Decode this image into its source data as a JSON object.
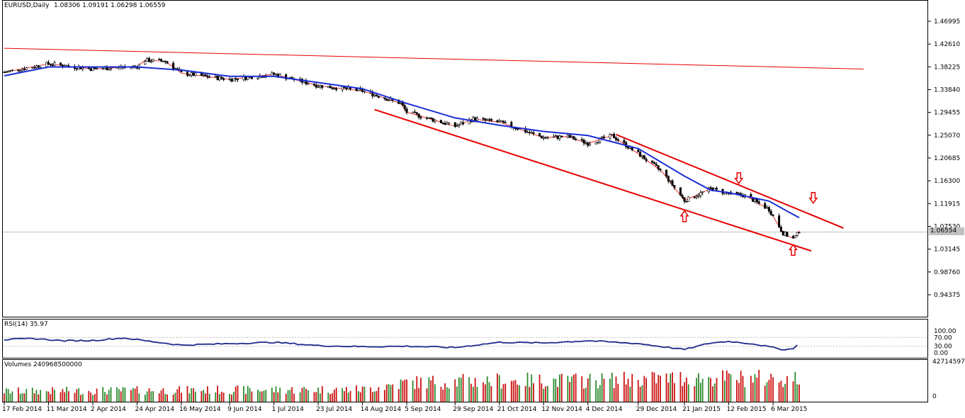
{
  "header": {
    "symbol": "EURUSD,Daily",
    "ohlc": "1.08306 1.09191 1.06298 1.06559"
  },
  "current_price": "1.06554",
  "rsi": {
    "label": "RSI(14) 35.97",
    "levels": [
      "100.00",
      "70.00",
      "30.00",
      "0.00"
    ]
  },
  "volume": {
    "label": "Volumes 240968500000",
    "axis_top": "427145971",
    "axis_bottom": "0"
  },
  "colors": {
    "bull": "#2d8a2d",
    "bear": "#cc1111",
    "ma": "#1a2fd6",
    "trend": "#e60000",
    "rsi_line": "#1c2a8c",
    "arrow": "#e60000",
    "grid": "#d0d0d0"
  },
  "chart_data": {
    "type": "candlestick",
    "title": "EURUSD,Daily",
    "ylim": [
      0.925,
      1.5
    ],
    "y_ticks": [
      "1.46995",
      "1.42610",
      "1.38225",
      "1.33840",
      "1.29455",
      "1.25070",
      "1.20685",
      "1.16300",
      "1.11915",
      "1.07530",
      "1.03145",
      "0.98760",
      "0.94375"
    ],
    "x_ticks": [
      "17 Feb 2014",
      "11 Mar 2014",
      "2 Apr 2014",
      "24 Apr 2014",
      "16 May 2014",
      "9 Jun 2014",
      "1 Jul 2014",
      "23 Jul 2014",
      "14 Aug 2014",
      "5 Sep 2014",
      "29 Sep 2014",
      "21 Oct 2014",
      "12 Nov 2014",
      "4 Dec 2014",
      "29 Dec 2014",
      "21 Jan 2015",
      "12 Feb 2015",
      "6 Mar 2015"
    ],
    "price_path": [
      [
        "2014-02-17",
        1.372
      ],
      [
        "2014-03-11",
        1.388
      ],
      [
        "2014-04-02",
        1.378
      ],
      [
        "2014-04-24",
        1.383
      ],
      [
        "2014-04-28",
        1.395
      ],
      [
        "2014-05-08",
        1.393
      ],
      [
        "2014-05-16",
        1.37
      ],
      [
        "2014-06-09",
        1.358
      ],
      [
        "2014-07-01",
        1.368
      ],
      [
        "2014-07-23",
        1.346
      ],
      [
        "2014-08-14",
        1.336
      ],
      [
        "2014-09-02",
        1.312
      ],
      [
        "2014-09-05",
        1.295
      ],
      [
        "2014-09-29",
        1.268
      ],
      [
        "2014-10-08",
        1.282
      ],
      [
        "2014-10-21",
        1.276
      ],
      [
        "2014-11-12",
        1.246
      ],
      [
        "2014-11-24",
        1.248
      ],
      [
        "2014-12-04",
        1.235
      ],
      [
        "2014-12-16",
        1.25
      ],
      [
        "2014-12-29",
        1.215
      ],
      [
        "2015-01-10",
        1.18
      ],
      [
        "2015-01-21",
        1.125
      ],
      [
        "2015-01-27",
        1.135
      ],
      [
        "2015-02-03",
        1.148
      ],
      [
        "2015-02-12",
        1.138
      ],
      [
        "2015-02-20",
        1.135
      ],
      [
        "2015-03-04",
        1.108
      ],
      [
        "2015-03-11",
        1.062
      ],
      [
        "2015-03-16",
        1.052
      ],
      [
        "2015-03-18",
        1.06
      ],
      [
        "2015-03-19",
        1.067
      ]
    ],
    "ma_path": [
      [
        "2014-02-17",
        1.365
      ],
      [
        "2014-03-11",
        1.382
      ],
      [
        "2014-04-24",
        1.382
      ],
      [
        "2014-05-16",
        1.376
      ],
      [
        "2014-06-09",
        1.364
      ],
      [
        "2014-07-01",
        1.364
      ],
      [
        "2014-07-23",
        1.352
      ],
      [
        "2014-08-14",
        1.34
      ],
      [
        "2014-09-05",
        1.312
      ],
      [
        "2014-09-29",
        1.284
      ],
      [
        "2014-10-21",
        1.27
      ],
      [
        "2014-11-12",
        1.258
      ],
      [
        "2014-12-04",
        1.25
      ],
      [
        "2014-12-29",
        1.225
      ],
      [
        "2015-01-21",
        1.172
      ],
      [
        "2015-02-03",
        1.145
      ],
      [
        "2015-02-12",
        1.14
      ],
      [
        "2015-03-04",
        1.124
      ],
      [
        "2015-03-16",
        1.098
      ],
      [
        "2015-03-19",
        1.092
      ]
    ],
    "trendlines": [
      {
        "from": [
          "2014-02-17",
          1.418
        ],
        "to": [
          "2015-04-20",
          1.378
        ]
      },
      {
        "from": [
          "2014-08-20",
          1.3
        ],
        "to": [
          "2015-03-25",
          1.028
        ]
      },
      {
        "from": [
          "2014-12-18",
          1.252
        ],
        "to": [
          "2015-04-10",
          1.072
        ]
      }
    ],
    "arrows": [
      {
        "date": "2015-01-21",
        "price": 1.105,
        "dir": "up"
      },
      {
        "date": "2015-02-17",
        "price": 1.158,
        "dir": "down"
      },
      {
        "date": "2015-03-16",
        "price": 1.04,
        "dir": "up"
      },
      {
        "date": "2015-03-26",
        "price": 1.12,
        "dir": "down"
      }
    ],
    "rsi_path": [
      [
        "2014-02-17",
        60
      ],
      [
        "2014-03-04",
        65
      ],
      [
        "2014-03-18",
        55
      ],
      [
        "2014-04-02",
        56
      ],
      [
        "2014-04-17",
        68
      ],
      [
        "2014-04-28",
        55
      ],
      [
        "2014-05-16",
        35
      ],
      [
        "2014-06-09",
        42
      ],
      [
        "2014-07-01",
        48
      ],
      [
        "2014-07-23",
        33
      ],
      [
        "2014-08-14",
        28
      ],
      [
        "2014-09-05",
        30
      ],
      [
        "2014-09-29",
        24
      ],
      [
        "2014-10-21",
        48
      ],
      [
        "2014-11-12",
        45
      ],
      [
        "2014-12-04",
        55
      ],
      [
        "2014-12-29",
        42
      ],
      [
        "2015-01-21",
        15
      ],
      [
        "2015-02-03",
        45
      ],
      [
        "2015-02-12",
        52
      ],
      [
        "2015-02-25",
        40
      ],
      [
        "2015-03-11",
        15
      ],
      [
        "2015-03-16",
        18
      ],
      [
        "2015-03-18",
        38
      ],
      [
        "2015-03-19",
        36
      ]
    ],
    "volume_profile": [
      [
        "2014-02-17",
        0.27
      ],
      [
        "2014-05-16",
        0.3
      ],
      [
        "2014-08-14",
        0.32
      ],
      [
        "2014-09-05",
        0.5
      ],
      [
        "2014-10-21",
        0.55
      ],
      [
        "2014-12-04",
        0.55
      ],
      [
        "2015-01-21",
        0.62
      ],
      [
        "2015-03-19",
        0.6
      ]
    ]
  }
}
